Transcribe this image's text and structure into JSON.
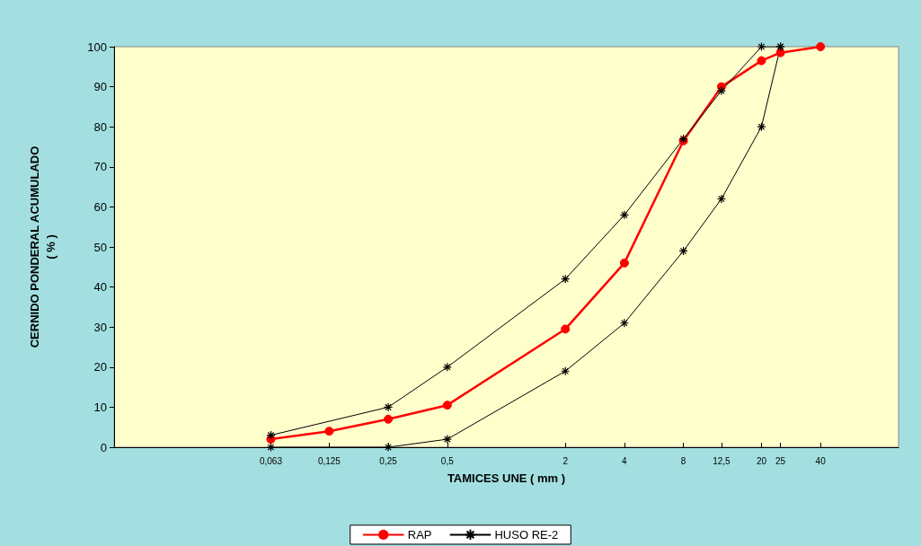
{
  "chart_data": {
    "type": "line",
    "xlabel": "TAMICES UNE ( mm )",
    "ylabel": "CERNIDO PONDERAL ACUMULADO\n( % )",
    "log": "x",
    "xlim": [
      0.01,
      100
    ],
    "xticks": [
      {
        "value": 0.063,
        "label": "0,063"
      },
      {
        "value": 0.125,
        "label": "0,125"
      },
      {
        "value": 0.25,
        "label": "0,25"
      },
      {
        "value": 0.5,
        "label": "0,5"
      },
      2,
      4,
      8,
      {
        "value": 12.5,
        "label": "12,5"
      },
      20,
      25,
      40
    ],
    "ylim": [
      0,
      100
    ],
    "yticks": [
      0,
      10,
      20,
      30,
      40,
      50,
      60,
      70,
      80,
      90,
      100
    ],
    "grid": false,
    "legend": "bottom",
    "series": [
      {
        "name": "RAP",
        "color": "#ff0000",
        "marker": "circle",
        "x": [
          0.063,
          0.125,
          0.25,
          0.5,
          2,
          4,
          8,
          12.5,
          20,
          25,
          40
        ],
        "values": [
          2,
          4,
          7,
          10.5,
          29.5,
          46,
          76.5,
          90,
          96.5,
          98.5,
          100
        ]
      },
      {
        "name": "HUSO RE-2",
        "color": "#000000",
        "marker": "cross",
        "x": [
          0.063,
          0.25,
          0.5,
          2,
          4,
          8,
          12.5,
          20,
          25
        ],
        "values": [
          3,
          10,
          20,
          42,
          58,
          77,
          89,
          100,
          100
        ]
      },
      {
        "color": "#000000",
        "marker": "cross",
        "x": [
          0.063,
          0.25,
          0.5,
          2,
          4,
          8,
          12.5,
          20,
          25
        ],
        "values": [
          0,
          0,
          2,
          19,
          31,
          49,
          62,
          80,
          100
        ]
      }
    ]
  }
}
